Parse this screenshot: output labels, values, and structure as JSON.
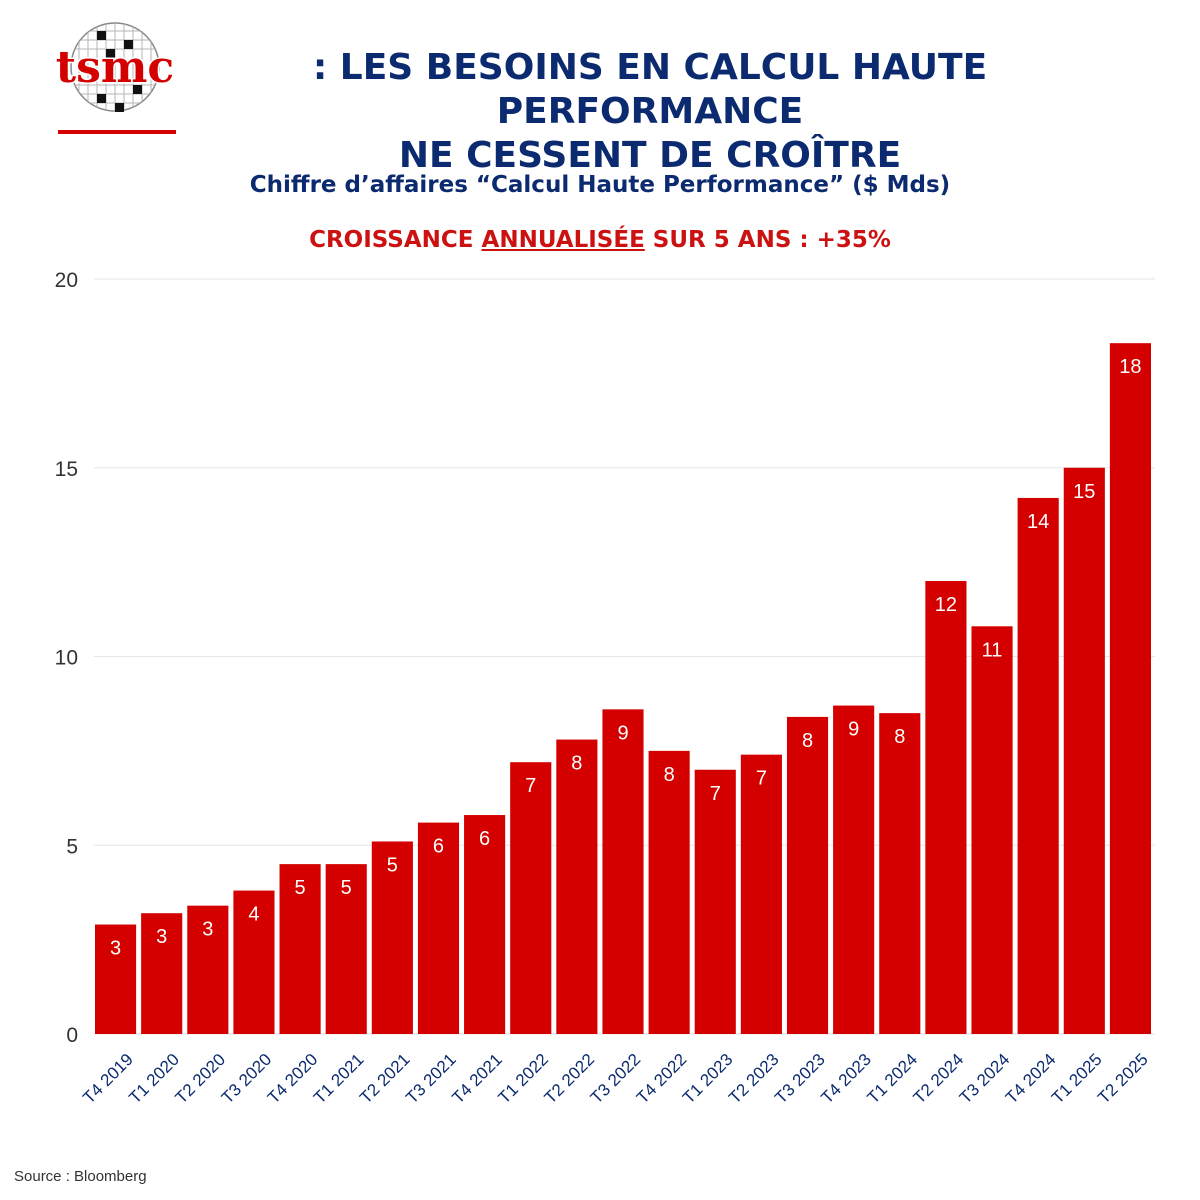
{
  "header": {
    "logo_text": "tsmc",
    "title_prefix": ":",
    "title_line1": "LES BESOINS EN CALCUL HAUTE PERFORMANCE",
    "title_line2": "NE CESSENT DE CROÎTRE"
  },
  "subtitle": "Chiffre d’affaires “Calcul Haute Performance” ($ Mds)",
  "growth": {
    "part1": "CROISSANCE ",
    "underlined": "ANNUALISÉE",
    "part2": " SUR 5 ANS : +35%"
  },
  "source": "Source : Bloomberg",
  "colors": {
    "bar": "#d40000",
    "title": "#0b2a6f",
    "accent": "#cc1111",
    "grid": "#e6e6e6"
  },
  "chart_data": {
    "type": "bar",
    "categories": [
      "T4 2019",
      "T1 2020",
      "T2 2020",
      "T3 2020",
      "T4 2020",
      "T1 2021",
      "T2 2021",
      "T3 2021",
      "T4 2021",
      "T1 2022",
      "T2 2022",
      "T3 2022",
      "T4 2022",
      "T1 2023",
      "T2 2023",
      "T3 2023",
      "T4 2023",
      "T1 2024",
      "T2 2024",
      "T3 2024",
      "T4 2024",
      "T1 2025",
      "T2 2025"
    ],
    "values": [
      2.9,
      3.2,
      3.4,
      3.8,
      4.5,
      4.5,
      5.1,
      5.6,
      5.8,
      7.2,
      7.8,
      8.6,
      7.5,
      7.0,
      7.4,
      8.4,
      8.7,
      8.5,
      12.0,
      10.8,
      14.2,
      15.0,
      18.3
    ],
    "labels": [
      "3",
      "3",
      "3",
      "4",
      "5",
      "5",
      "5",
      "6",
      "6",
      "7",
      "8",
      "9",
      "8",
      "7",
      "7",
      "8",
      "9",
      "8",
      "12",
      "11",
      "14",
      "15",
      "18"
    ],
    "yticks": [
      0,
      5,
      10,
      15,
      20
    ],
    "ylim": [
      0,
      20
    ],
    "grid": true
  }
}
